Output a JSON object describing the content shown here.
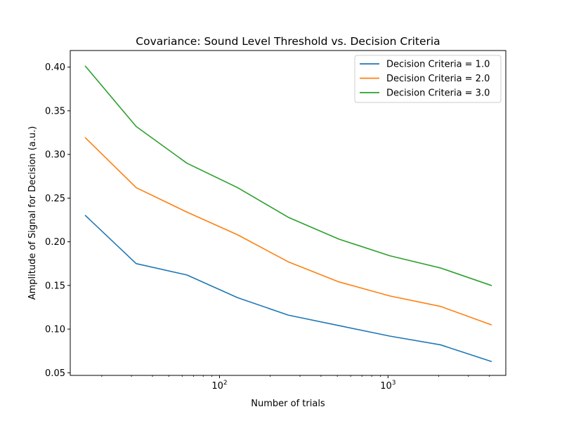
{
  "chart_data": {
    "type": "line",
    "title": "Covariance: Sound Level Threshold vs. Decision Criteria",
    "xlabel": "Number of trials",
    "ylabel": "Amplitude of Signal for Decision (a.u.)",
    "x_scale": "log",
    "x": [
      16,
      32,
      64,
      128,
      256,
      512,
      1024,
      2048,
      4096
    ],
    "xlim": [
      13,
      5000
    ],
    "ylim": [
      0.047,
      0.419
    ],
    "x_ticks": [
      {
        "value": 100,
        "base": "10",
        "exp": "2"
      },
      {
        "value": 1000,
        "base": "10",
        "exp": "3"
      }
    ],
    "y_ticks": [
      {
        "value": 0.05,
        "label": "0.05"
      },
      {
        "value": 0.1,
        "label": "0.10"
      },
      {
        "value": 0.15,
        "label": "0.15"
      },
      {
        "value": 0.2,
        "label": "0.20"
      },
      {
        "value": 0.25,
        "label": "0.25"
      },
      {
        "value": 0.3,
        "label": "0.30"
      },
      {
        "value": 0.35,
        "label": "0.35"
      },
      {
        "value": 0.4,
        "label": "0.40"
      }
    ],
    "grid": false,
    "legend_position": "top-right",
    "series": [
      {
        "name": "Decision Criteria = 1.0",
        "color": "#1f77b4",
        "values": [
          0.23,
          0.175,
          0.162,
          0.136,
          0.116,
          0.104,
          0.092,
          0.082,
          0.063
        ]
      },
      {
        "name": "Decision Criteria = 2.0",
        "color": "#ff7f0e",
        "values": [
          0.319,
          0.262,
          0.234,
          0.208,
          0.177,
          0.154,
          0.138,
          0.126,
          0.105
        ]
      },
      {
        "name": "Decision Criteria = 3.0",
        "color": "#2ca02c",
        "values": [
          0.401,
          0.332,
          0.29,
          0.262,
          0.228,
          0.203,
          0.184,
          0.17,
          0.15
        ]
      }
    ]
  }
}
